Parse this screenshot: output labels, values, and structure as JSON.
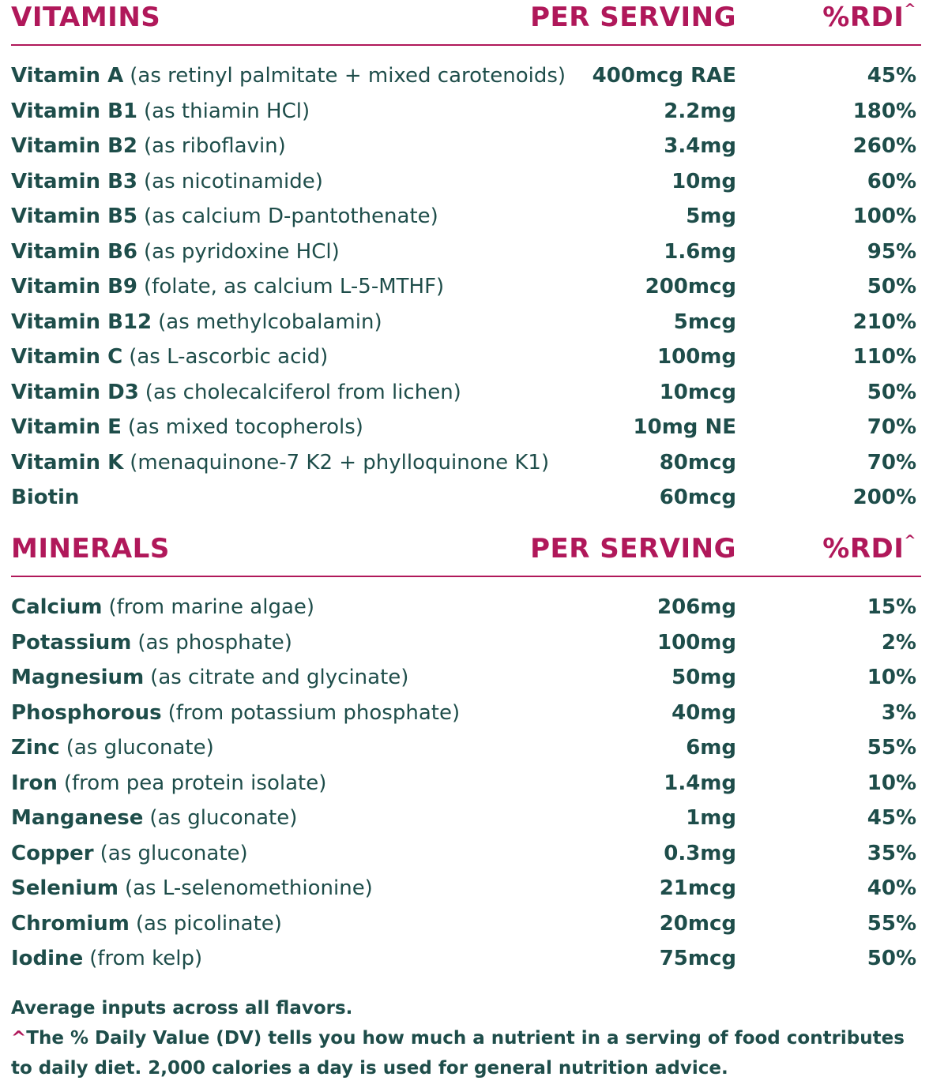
{
  "vitamins": {
    "header": {
      "name": "VITAMINS",
      "per_serving": "PER SERVING",
      "rdi": "%RDI",
      "rdi_mark": "^"
    },
    "rows": [
      {
        "name": "Vitamin A",
        "desc": "(as retinyl palmitate + mixed carotenoids)",
        "serving": "400mcg RAE",
        "rdi": "45%"
      },
      {
        "name": "Vitamin B1",
        "desc": "(as thiamin HCl)",
        "serving": "2.2mg",
        "rdi": "180%"
      },
      {
        "name": "Vitamin B2",
        "desc": "(as riboflavin)",
        "serving": "3.4mg",
        "rdi": "260%"
      },
      {
        "name": "Vitamin B3",
        "desc": "(as nicotinamide)",
        "serving": "10mg",
        "rdi": "60%"
      },
      {
        "name": "Vitamin B5",
        "desc": "(as calcium D-pantothenate)",
        "serving": "5mg",
        "rdi": "100%"
      },
      {
        "name": "Vitamin B6",
        "desc": "(as pyridoxine HCl)",
        "serving": "1.6mg",
        "rdi": "95%"
      },
      {
        "name": "Vitamin B9",
        "desc": "(folate, as calcium L-5-MTHF)",
        "serving": "200mcg",
        "rdi": "50%"
      },
      {
        "name": "Vitamin B12",
        "desc": "(as methylcobalamin)",
        "serving": "5mcg",
        "rdi": "210%"
      },
      {
        "name": "Vitamin C",
        "desc": "(as L-ascorbic acid)",
        "serving": "100mg",
        "rdi": "110%"
      },
      {
        "name": "Vitamin D3",
        "desc": "(as cholecalciferol from lichen)",
        "serving": "10mcg",
        "rdi": "50%"
      },
      {
        "name": "Vitamin E",
        "desc": "(as mixed tocopherols)",
        "serving": "10mg NE",
        "rdi": "70%"
      },
      {
        "name": "Vitamin K",
        "desc": "(menaquinone-7 K2 + phylloquinone K1)",
        "serving": "80mcg",
        "rdi": "70%"
      },
      {
        "name": "Biotin",
        "desc": "",
        "serving": "60mcg",
        "rdi": "200%"
      }
    ]
  },
  "minerals": {
    "header": {
      "name": "MINERALS",
      "per_serving": "PER SERVING",
      "rdi": "%RDI",
      "rdi_mark": "^"
    },
    "rows": [
      {
        "name": "Calcium",
        "desc": "(from marine algae)",
        "serving": "206mg",
        "rdi": "15%"
      },
      {
        "name": "Potassium",
        "desc": "(as phosphate)",
        "serving": "100mg",
        "rdi": "2%"
      },
      {
        "name": "Magnesium",
        "desc": "(as citrate and glycinate)",
        "serving": "50mg",
        "rdi": "10%"
      },
      {
        "name": "Phosphorous",
        "desc": "(from potassium phosphate)",
        "serving": "40mg",
        "rdi": "3%"
      },
      {
        "name": "Zinc",
        "desc": "(as gluconate)",
        "serving": "6mg",
        "rdi": "55%"
      },
      {
        "name": "Iron",
        "desc": "(from pea protein isolate)",
        "serving": "1.4mg",
        "rdi": "10%"
      },
      {
        "name": "Manganese",
        "desc": "(as gluconate)",
        "serving": "1mg",
        "rdi": "45%"
      },
      {
        "name": "Copper",
        "desc": "(as gluconate)",
        "serving": "0.3mg",
        "rdi": "35%"
      },
      {
        "name": "Selenium",
        "desc": "(as L-selenomethionine)",
        "serving": "21mcg",
        "rdi": "40%"
      },
      {
        "name": "Chromium",
        "desc": "(as picolinate)",
        "serving": "20mcg",
        "rdi": "55%"
      },
      {
        "name": "Iodine",
        "desc": "(from kelp)",
        "serving": "75mcg",
        "rdi": "50%"
      }
    ]
  },
  "footnotes": {
    "line1": "Average inputs across all flavors.",
    "caret": "^",
    "line2": "The % Daily Value (DV) tells you how much a nutrient in a serving of food contributes to daily diet. 2,000 calories a day is used for general nutrition advice."
  },
  "colors": {
    "accent": "#b0185a",
    "text": "#1e4d4a"
  }
}
